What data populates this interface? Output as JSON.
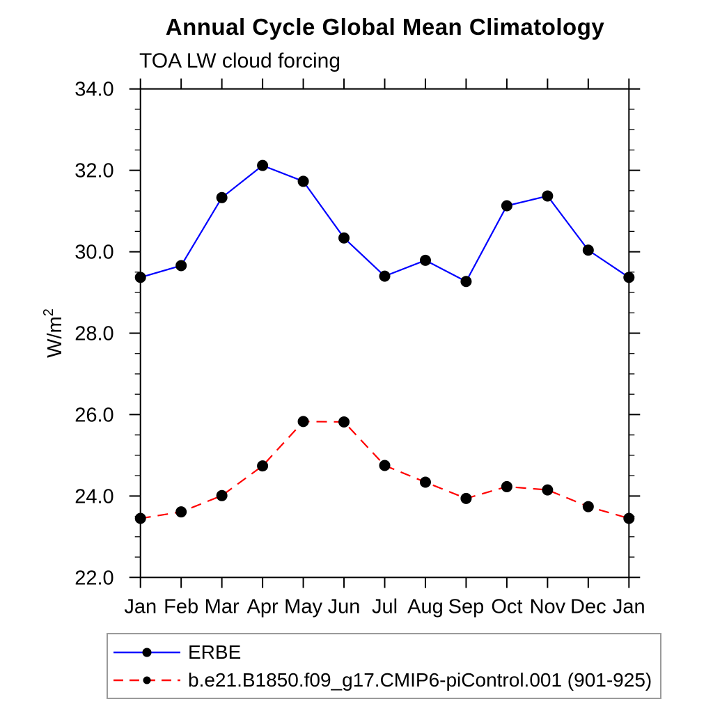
{
  "chart_data": {
    "type": "line",
    "title": "Annual Cycle Global Mean Climatology",
    "subtitle": "TOA LW cloud forcing",
    "ylabel": "W/m²",
    "ylabel_base": "W/m",
    "ylabel_sup": "2",
    "xlabel": "",
    "categories": [
      "Jan",
      "Feb",
      "Mar",
      "Apr",
      "May",
      "Jun",
      "Jul",
      "Aug",
      "Sep",
      "Oct",
      "Nov",
      "Dec",
      "Jan"
    ],
    "ylim": [
      22.0,
      34.0
    ],
    "ytick_major_step": 2.0,
    "ytick_minor_step": 0.5,
    "ytick_labels": [
      "22.0",
      "24.0",
      "26.0",
      "28.0",
      "30.0",
      "32.0",
      "34.0"
    ],
    "grid": false,
    "legend_position": "bottom-left-box",
    "axis_color": "#000000",
    "marker_color": "#000000",
    "series": [
      {
        "name": "ERBE",
        "color": "#0000ff",
        "line_style": "solid",
        "marker": "filled-circle",
        "values": [
          29.37,
          29.66,
          31.33,
          32.12,
          31.73,
          30.34,
          29.4,
          29.79,
          29.27,
          31.13,
          31.37,
          30.04,
          29.37
        ]
      },
      {
        "name": "b.e21.B1850.f09_g17.CMIP6-piControl.001 (901-925)",
        "color": "#ff0000",
        "line_style": "dashed",
        "marker": "filled-circle",
        "values": [
          23.45,
          23.61,
          24.01,
          24.74,
          25.83,
          25.82,
          24.75,
          24.34,
          23.94,
          24.23,
          24.15,
          23.74,
          23.45
        ]
      }
    ]
  }
}
